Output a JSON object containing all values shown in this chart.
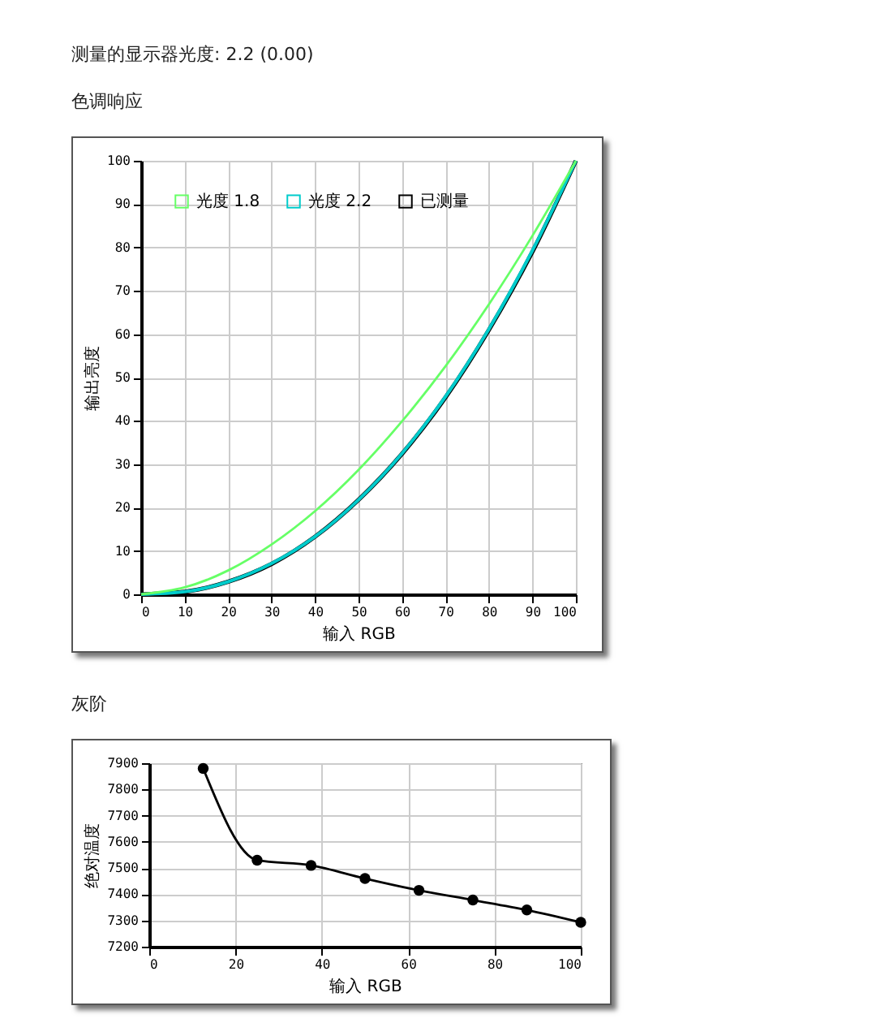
{
  "chart_data": [
    {
      "type": "line",
      "title": "色调响应",
      "annotations": [
        "测量的显示器光度: 2.2 (0.00)"
      ],
      "xlabel": "输入 RGB",
      "ylabel": "输出亮度",
      "x": [
        0,
        10,
        20,
        30,
        40,
        50,
        60,
        70,
        80,
        90,
        100
      ],
      "series": [
        {
          "name": "光度 1.8",
          "color": "#66ff66",
          "values": [
            0,
            1.6,
            5.5,
            11.5,
            19.2,
            28.7,
            39.9,
            52.6,
            66.9,
            82.7,
            100
          ]
        },
        {
          "name": "光度 2.2",
          "color": "#00cccc",
          "values": [
            0,
            0.6,
            2.9,
            7.1,
            13.3,
            21.8,
            32.5,
            45.6,
            61.2,
            79.3,
            100
          ]
        },
        {
          "name": "已测量",
          "color": "#000000",
          "values": [
            0,
            0.6,
            2.9,
            7.0,
            13.3,
            21.8,
            32.4,
            45.4,
            61.0,
            79.0,
            100
          ]
        }
      ],
      "xlim": [
        0,
        100
      ],
      "xticks": [
        0,
        10,
        20,
        30,
        40,
        50,
        60,
        70,
        80,
        90,
        100
      ],
      "ylim": [
        0,
        100
      ],
      "yticks": [
        0,
        10,
        20,
        30,
        40,
        50,
        60,
        70,
        80,
        90,
        100
      ],
      "grid": true,
      "legend": "top left",
      "marker": "none"
    },
    {
      "type": "line",
      "title": "灰阶",
      "xlabel": "输入 RGB",
      "ylabel": "绝对温度",
      "x": [
        12.5,
        25,
        37.5,
        50,
        62.5,
        75,
        87.5,
        100
      ],
      "series": [
        {
          "color": "#000000",
          "values": [
            7880,
            7530,
            7510,
            7460,
            7415,
            7378,
            7340,
            7293
          ]
        }
      ],
      "xlim": [
        0,
        100
      ],
      "xticks": [
        0,
        20,
        40,
        60,
        80,
        100
      ],
      "ylim": [
        7200,
        7900
      ],
      "yticks": [
        7200,
        7300,
        7400,
        7500,
        7600,
        7700,
        7800,
        7900
      ],
      "grid": true,
      "marker": "circle"
    }
  ]
}
